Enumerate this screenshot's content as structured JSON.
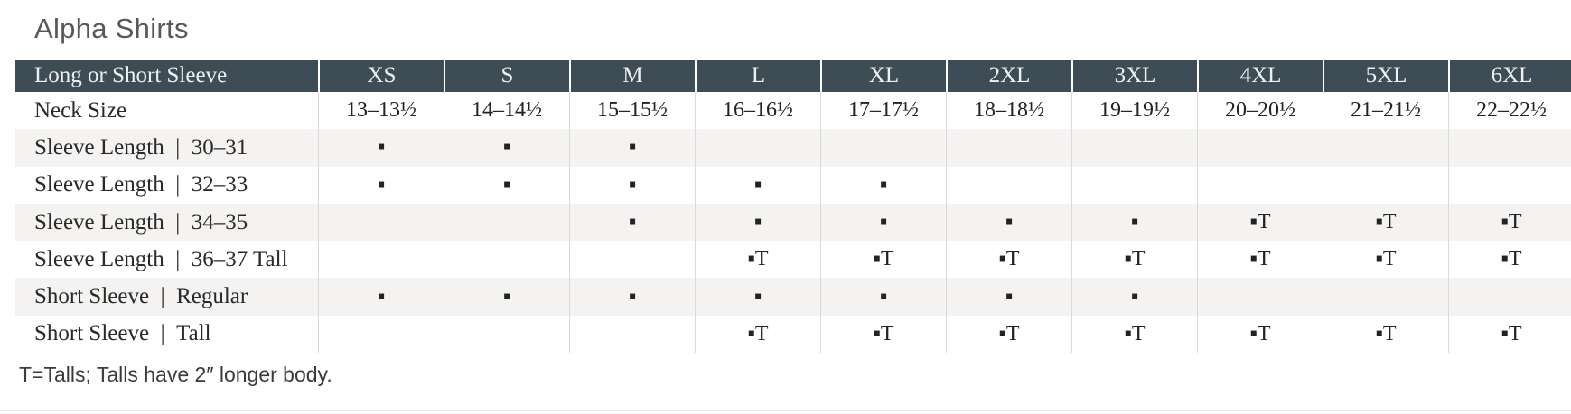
{
  "page": {
    "title": "Alpha Shirts",
    "footnote": "T=Talls; Talls have 2″ longer body."
  },
  "colors": {
    "header_background": "#3e4c55",
    "header_text": "#eef1f2",
    "shaded_row_background": "#f4f3f1",
    "body_text": "#232323",
    "column_divider": "#d9d9d9"
  },
  "legend": {
    "available_marker": "▪",
    "available_tall_marker": "▪T"
  },
  "table": {
    "header": [
      "Long or Short Sleeve",
      "XS",
      "S",
      "M",
      "L",
      "XL",
      "2XL",
      "3XL",
      "4XL",
      "5XL",
      "6XL"
    ],
    "rows": [
      {
        "label": "Neck Size",
        "shaded": false,
        "cells": [
          "13–13½",
          "14–14½",
          "15–15½",
          "16–16½",
          "17–17½",
          "18–18½",
          "19–19½",
          "20–20½",
          "21–21½",
          "22–22½"
        ]
      },
      {
        "label": "Sleeve Length | 30–31",
        "shaded": true,
        "cells": [
          "▪",
          "▪",
          "▪",
          "",
          "",
          "",
          "",
          "",
          "",
          ""
        ]
      },
      {
        "label": "Sleeve Length | 32–33",
        "shaded": false,
        "cells": [
          "▪",
          "▪",
          "▪",
          "▪",
          "▪",
          "",
          "",
          "",
          "",
          ""
        ]
      },
      {
        "label": "Sleeve Length | 34–35",
        "shaded": true,
        "cells": [
          "",
          "",
          "▪",
          "▪",
          "▪",
          "▪",
          "▪",
          "▪T",
          "▪T",
          "▪T"
        ]
      },
      {
        "label": "Sleeve Length | 36–37 Tall",
        "shaded": false,
        "cells": [
          "",
          "",
          "",
          "▪T",
          "▪T",
          "▪T",
          "▪T",
          "▪T",
          "▪T",
          "▪T"
        ]
      },
      {
        "label": "Short Sleeve | Regular",
        "shaded": true,
        "cells": [
          "▪",
          "▪",
          "▪",
          "▪",
          "▪",
          "▪",
          "▪",
          "",
          "",
          ""
        ]
      },
      {
        "label": "Short Sleeve | Tall",
        "shaded": false,
        "cells": [
          "",
          "",
          "",
          "▪T",
          "▪T",
          "▪T",
          "▪T",
          "▪T",
          "▪T",
          "▪T"
        ]
      }
    ]
  }
}
